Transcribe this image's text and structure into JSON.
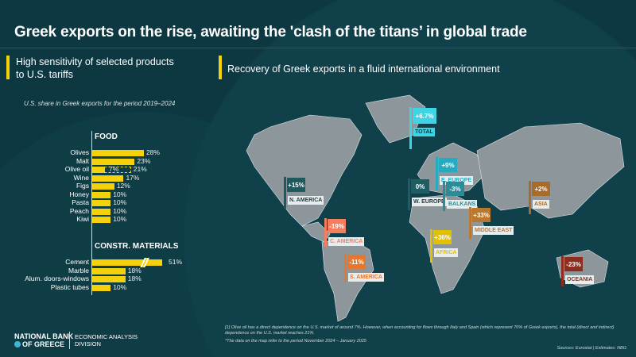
{
  "title": "Greek exports on the rise, awaiting the 'clash of the titans’ in global trade",
  "left_section": {
    "heading_line1": "High sensitivity of selected products",
    "heading_line2": "to U.S. tariffs",
    "subtitle": "U.S. share in Greek exports for the period 2019–2024"
  },
  "right_section": {
    "heading": "Recovery of Greek exports in a fluid international environment"
  },
  "chart_data": {
    "type": "bar",
    "orientation": "horizontal",
    "title": "U.S. share in Greek exports for the period 2019–2024",
    "unit": "%",
    "groups": [
      {
        "name": "FOOD",
        "categories": [
          "Olives",
          "Malt",
          "Olive oil",
          "Wine",
          "Figs",
          "Honey",
          "Pasta",
          "Peach",
          "Kiwi"
        ],
        "values": [
          28,
          23,
          21,
          17,
          12,
          10,
          10,
          10,
          10
        ],
        "labels": [
          "28%",
          "23%",
          "21%",
          "17%",
          "12%",
          "10%",
          "10%",
          "10%",
          "10%"
        ],
        "olive_oil_direct": 7,
        "olive_oil_direct_label": "7%"
      },
      {
        "name": "CONSTR. MATERIALS",
        "categories": [
          "Cement",
          "Marble",
          "Alum. doors-windows",
          "Plastic tubes"
        ],
        "values": [
          51,
          18,
          18,
          10
        ],
        "labels": [
          "51%",
          "18%",
          "18%",
          "10%"
        ],
        "axis_break": "Cement"
      }
    ],
    "bar_color": "#f5d10c"
  },
  "map": {
    "total": {
      "value": "+6.7%",
      "label": "TOTAL",
      "color": "#3fd3e3"
    },
    "regions": [
      {
        "label": "N. AMERICA",
        "value": "+15%",
        "color": "#1d5a5e"
      },
      {
        "label": "C. AMERICA",
        "value": "-19%",
        "color": "#f47d5e"
      },
      {
        "label": "S. AMERICA",
        "value": "-11%",
        "color": "#e8772e"
      },
      {
        "label": "W. EUROPE",
        "value": "0%",
        "color": "#1f5d62"
      },
      {
        "label": "E. EUROPE",
        "value": "+9%",
        "color": "#26aac0"
      },
      {
        "label": "BALKANS",
        "value": "-3%",
        "color": "#2b8b96"
      },
      {
        "label": "MIDDLE EAST",
        "value": "+33%",
        "color": "#b9782f"
      },
      {
        "label": "AFRICA",
        "value": "+36%",
        "color": "#e2c000"
      },
      {
        "label": "ASIA",
        "value": "+2%",
        "color": "#a96b2a"
      },
      {
        "label": "OCEANIA",
        "value": "-23%",
        "color": "#8c2d1d"
      }
    ]
  },
  "footer": {
    "logo_line1": "NATIONAL BANK",
    "logo_line2": "OF GREECE",
    "division_line1": "ECONOMIC ANALYSIS",
    "division_line2": "DIVISION",
    "note1": "[1] Olive oil has a direct dependence on the U.S. market of around 7%. However, when accounting for flows through Italy and Spain (which represent 70% of Greek exports), the total (direct and indirect) dependence on the U.S. market reaches 21%.",
    "note2": "*The data on the map refer to the period November 2024 – January 2025",
    "sources": "Sources: Eurostat | Estimates: NBG"
  }
}
